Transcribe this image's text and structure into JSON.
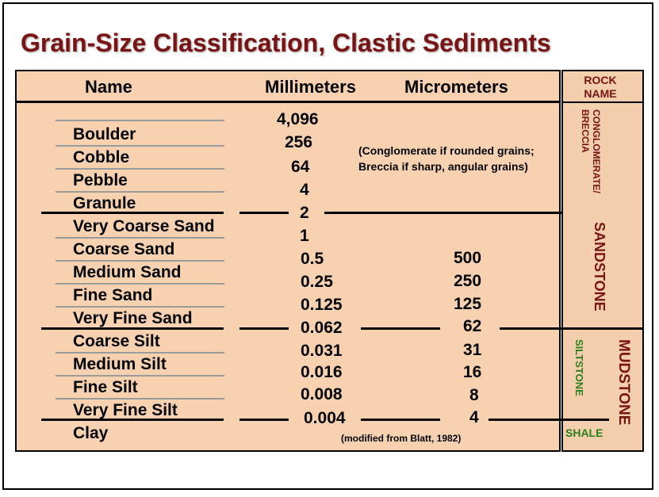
{
  "title": "Grain-Size Classification, Clastic Sediments",
  "headers": {
    "name": "Name",
    "mm": "Millimeters",
    "um": "Micrometers",
    "rock_line1": "ROCK",
    "rock_line2": "NAME"
  },
  "names": [
    "Boulder",
    "Cobble",
    "Pebble",
    "Granule",
    "Very Coarse Sand",
    "Coarse Sand",
    "Medium Sand",
    "Fine Sand",
    "Very Fine Sand",
    "Coarse Silt",
    "Medium Silt",
    "Fine Silt",
    "Very Fine Silt",
    "Clay"
  ],
  "millimeters": [
    "4,096",
    "256",
    "64",
    "4",
    "2",
    "1",
    "0.5",
    "0.25",
    "0.125",
    "0.062",
    "0.031",
    "0.016",
    "0.008",
    "0.004"
  ],
  "micrometers": [
    "500",
    "250",
    "125",
    "62",
    "31",
    "16",
    "8",
    "4"
  ],
  "note_line1": "(Conglomerate if rounded grains;",
  "note_line2": "Breccia if sharp, angular grains)",
  "source": "(modified from Blatt, 1982)",
  "rock_names": {
    "conglomerate_line1": "CONGLOMERATE/",
    "conglomerate_line2": "BRECCIA",
    "sandstone": "SANDSTONE",
    "siltstone": "SILTSTONE",
    "mudstone": "MUDSTONE",
    "shale": "SHALE"
  },
  "colors": {
    "title": "#7a1414",
    "table_bg": "#f8d2b0",
    "siltstone": "#2e7d1c"
  }
}
